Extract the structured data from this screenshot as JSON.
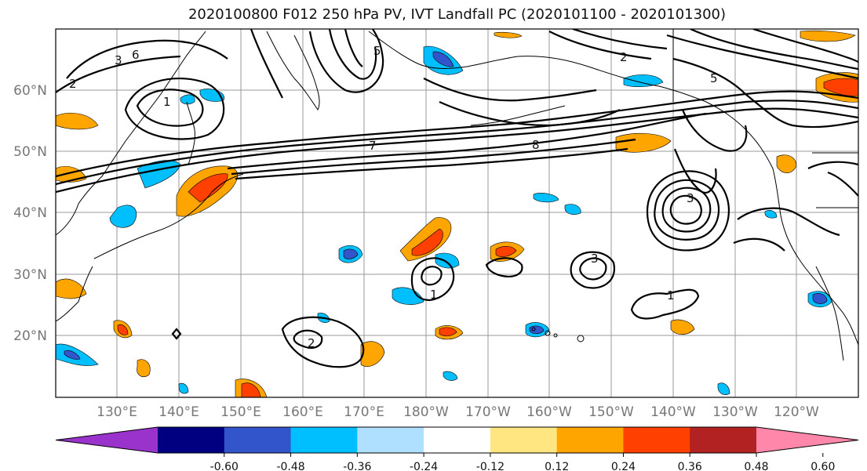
{
  "title": "2020100800 F012 250 hPa PV, IVT Landfall PC (2020101100 - 2020101300)",
  "map": {
    "lat_labels": [
      "60°N",
      "50°N",
      "40°N",
      "30°N",
      "20°N"
    ],
    "lon_labels": [
      "130°E",
      "140°E",
      "150°E",
      "160°E",
      "170°E",
      "180°W",
      "170°W",
      "160°W",
      "150°W",
      "140°W",
      "130°W",
      "120°W"
    ],
    "contour_labels": [
      "1",
      "2",
      "3",
      "5",
      "6",
      "7",
      "8",
      "1",
      "2",
      "3",
      "5",
      "1",
      "2",
      "3"
    ]
  },
  "colorbar": {
    "tick_labels": [
      "-0.60",
      "-0.48",
      "-0.36",
      "-0.24",
      "-0.12",
      "0.12",
      "0.24",
      "0.36",
      "0.48",
      "0.60"
    ],
    "colors": [
      "#9933cc",
      "#000080",
      "#3355cc",
      "#00bfff",
      "#b0e0ff",
      "#ffffff",
      "#ffe680",
      "#ffa500",
      "#ff4000",
      "#b22222",
      "#ff88aa"
    ]
  },
  "colors": {
    "negative_strong": "#3355cc",
    "negative": "#00bfff",
    "positive": "#ffa500",
    "positive_strong": "#ff4000"
  }
}
